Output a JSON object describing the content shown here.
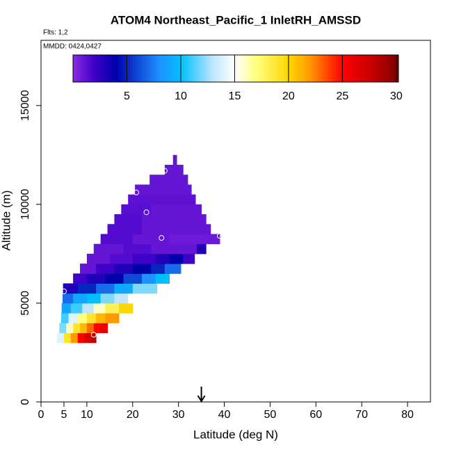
{
  "chart_data": {
    "type": "curtain",
    "title": "ATOM4 Northeast_Pacific_1 InletRH_AMSSD",
    "flights": "Flts: 1,2",
    "dates": "MMDD: 0424,0427",
    "x_label": "Latitude (deg N)",
    "y_label": "Altitude (m)",
    "xlim": [
      0,
      85
    ],
    "ylim": [
      0,
      18300
    ],
    "xticks": [
      0,
      5,
      10,
      20,
      30,
      40,
      50,
      60,
      70,
      80
    ],
    "yticks": [
      0,
      5000,
      10000,
      15000
    ],
    "clim": [
      0,
      30.2
    ],
    "cticks": [
      5,
      10,
      15,
      20,
      25,
      30
    ],
    "colorscale": [
      [
        0,
        "#8a2be2"
      ],
      [
        2,
        "#3f00c8"
      ],
      [
        4,
        "#0000aa"
      ],
      [
        8,
        "#1e90ff"
      ],
      [
        10,
        "#00bfff"
      ],
      [
        13,
        "#bfe6ff"
      ],
      [
        15,
        "#ffffff"
      ],
      [
        17,
        "#ffff80"
      ],
      [
        20,
        "#ffd700"
      ],
      [
        22,
        "#ff9900"
      ],
      [
        25,
        "#ff0000"
      ],
      [
        28,
        "#c00000"
      ],
      [
        30,
        "#800000"
      ]
    ],
    "arrow_lat": 35,
    "rows": [
      {
        "alt": [
          3000,
          3500
        ],
        "lat_edges": [
          3.5,
          5,
          6.5,
          8,
          9.5,
          11,
          12
        ],
        "values": [
          14,
          19,
          22,
          25,
          27,
          28
        ]
      },
      {
        "alt": [
          3500,
          4000
        ],
        "lat_edges": [
          4,
          5.5,
          7,
          8.5,
          10,
          11.5,
          13,
          14.5
        ],
        "values": [
          12,
          16,
          19,
          21,
          23,
          25,
          26
        ]
      },
      {
        "alt": [
          4000,
          4500
        ],
        "lat_edges": [
          4.4,
          6,
          8,
          10,
          12,
          14,
          17
        ],
        "values": [
          11,
          14,
          17,
          19,
          21,
          22
        ]
      },
      {
        "alt": [
          4500,
          5000
        ],
        "lat_edges": [
          4.5,
          6.5,
          9,
          11.5,
          14,
          17,
          20
        ],
        "values": [
          9,
          11,
          13,
          16,
          18,
          20
        ]
      },
      {
        "alt": [
          5000,
          5500
        ],
        "lat_edges": [
          4.7,
          7,
          10,
          13,
          16,
          19,
          22.5
        ],
        "values": [
          7,
          9,
          10,
          12,
          13,
          15
        ]
      },
      {
        "alt": [
          5500,
          6000
        ],
        "lat_edges": [
          4.8,
          8,
          12,
          16,
          20,
          25.3
        ],
        "values": [
          3,
          5,
          7,
          9,
          12
        ]
      },
      {
        "alt": [
          6000,
          6500
        ],
        "lat_edges": [
          7,
          10,
          14,
          18,
          22,
          25,
          28
        ],
        "values": [
          2,
          3,
          4,
          6,
          8,
          10
        ]
      },
      {
        "alt": [
          6500,
          7000
        ],
        "lat_edges": [
          8.5,
          12,
          16,
          20,
          24,
          27,
          30.5
        ],
        "values": [
          1,
          2,
          3,
          4,
          5,
          7
        ]
      },
      {
        "alt": [
          7000,
          7500
        ],
        "lat_edges": [
          10,
          15,
          20,
          25,
          28,
          31,
          33.5
        ],
        "values": [
          1,
          1.5,
          2,
          3,
          4,
          2
        ]
      },
      {
        "alt": [
          7500,
          8000
        ],
        "lat_edges": [
          11.5,
          18,
          24,
          30,
          34,
          36
        ],
        "values": [
          1,
          1.5,
          1,
          1,
          3
        ]
      },
      {
        "alt": [
          8000,
          8500
        ],
        "lat_edges": [
          13,
          20,
          28,
          39
        ],
        "values": [
          1.5,
          1,
          0.8
        ]
      },
      {
        "alt": [
          8500,
          9000
        ],
        "lat_edges": [
          14.5,
          22,
          37
        ],
        "values": [
          1.5,
          1
        ]
      },
      {
        "alt": [
          9000,
          9500
        ],
        "lat_edges": [
          16,
          22,
          36
        ],
        "values": [
          1.5,
          1
        ]
      },
      {
        "alt": [
          9500,
          10000
        ],
        "lat_edges": [
          17.5,
          24,
          35
        ],
        "values": [
          1.3,
          1
        ]
      },
      {
        "alt": [
          10000,
          10500
        ],
        "lat_edges": [
          19,
          33.7
        ],
        "values": [
          1.2
        ]
      },
      {
        "alt": [
          10500,
          11000
        ],
        "lat_edges": [
          20.5,
          32.8
        ],
        "values": [
          1
        ]
      },
      {
        "alt": [
          11000,
          11500
        ],
        "lat_edges": [
          23.7,
          32
        ],
        "values": [
          1
        ]
      },
      {
        "alt": [
          11500,
          12000
        ],
        "lat_edges": [
          27,
          31
        ],
        "values": [
          1
        ]
      },
      {
        "alt": [
          12000,
          12500
        ],
        "lat_edges": [
          28.8,
          29.6
        ],
        "values": [
          1
        ]
      }
    ],
    "points": [
      {
        "lat": 5,
        "alt": 5600
      },
      {
        "lat": 11.5,
        "alt": 3400
      },
      {
        "lat": 20.8,
        "alt": 10600
      },
      {
        "lat": 23,
        "alt": 9600
      },
      {
        "lat": 27,
        "alt": 11700
      },
      {
        "lat": 26.3,
        "alt": 8300
      },
      {
        "lat": 39,
        "alt": 8400
      }
    ]
  }
}
